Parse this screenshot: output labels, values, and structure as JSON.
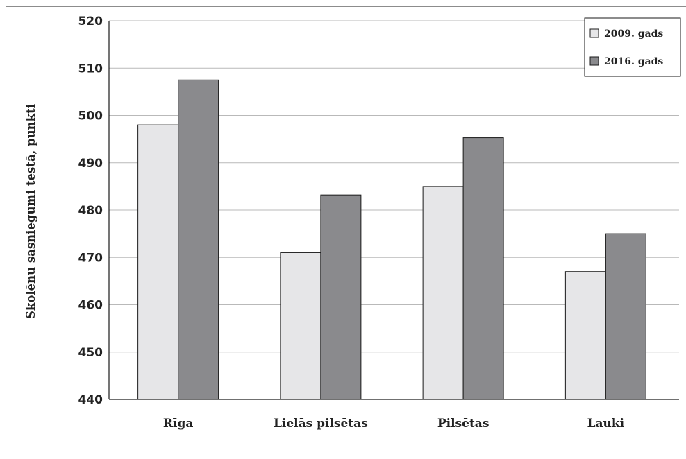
{
  "chart_data": {
    "type": "bar",
    "categories": [
      "Rīga",
      "Lielās pilsētas",
      "Pilsētas",
      "Lauki"
    ],
    "series": [
      {
        "name": "2009. gads",
        "color": "#e6e6e8",
        "values": [
          498,
          471,
          485,
          467
        ]
      },
      {
        "name": "2016. gads",
        "color": "#8a8a8d",
        "values": [
          507.5,
          483.2,
          495.3,
          475
        ]
      }
    ],
    "ylabel": "Skolēnu sasniegumi testā,  punkti",
    "xlabel": "",
    "ylim": [
      440,
      520
    ],
    "yticks": [
      440,
      450,
      460,
      470,
      480,
      490,
      500,
      510,
      520
    ],
    "grid": true,
    "legend_position": "top-right"
  }
}
